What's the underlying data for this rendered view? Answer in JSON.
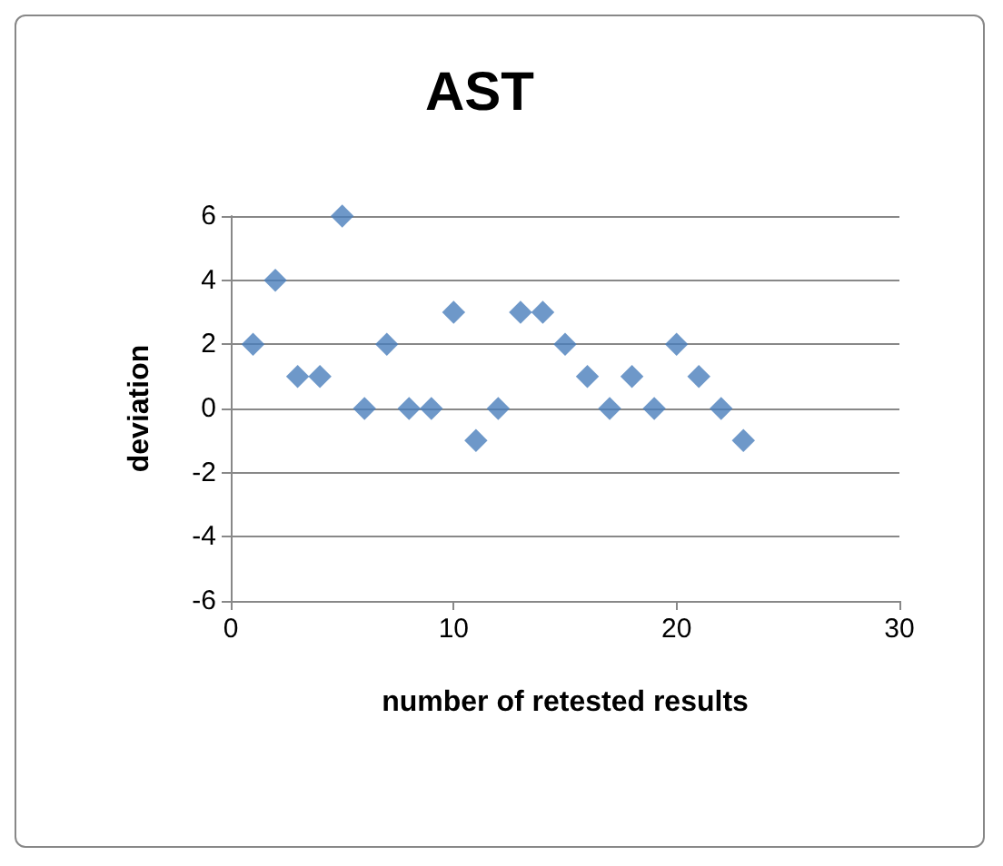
{
  "chart_data": {
    "type": "scatter",
    "title": "AST",
    "xlabel": "number of retested results",
    "ylabel": "deviation",
    "x": [
      1,
      2,
      3,
      4,
      5,
      6,
      7,
      8,
      9,
      10,
      11,
      12,
      13,
      14,
      15,
      16,
      17,
      18,
      19,
      20,
      21,
      22,
      23
    ],
    "values": [
      2,
      4,
      1,
      1,
      6,
      0,
      2,
      0,
      0,
      3,
      -1,
      0,
      3,
      3,
      2,
      1,
      0,
      1,
      0,
      2,
      1,
      0,
      -1
    ],
    "color": "#4a7ebb",
    "marker": "diamond",
    "xlim": [
      0,
      30
    ],
    "xticks": [
      0,
      10,
      20,
      30
    ],
    "ylim": [
      -6,
      6
    ],
    "yticks": [
      -6,
      -4,
      -2,
      0,
      2,
      4,
      6
    ],
    "grid": "y"
  }
}
